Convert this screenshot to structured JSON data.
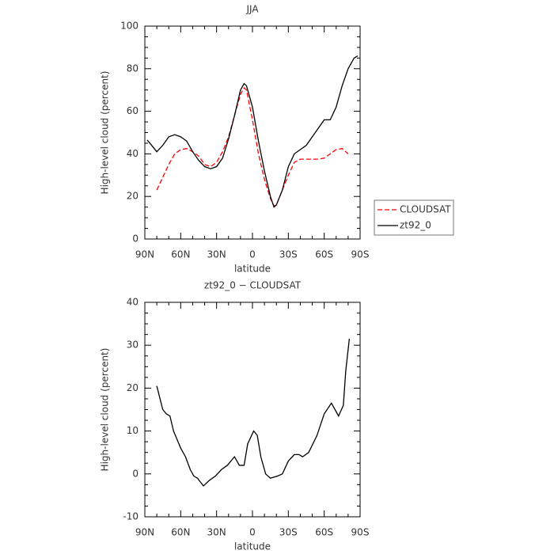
{
  "chart_data": [
    {
      "type": "line",
      "title": "JJA",
      "x_label": "latitude",
      "y_label": "High-level cloud (percent)",
      "x": [
        88,
        85,
        80,
        75,
        70,
        65,
        60,
        55,
        50,
        45,
        40,
        35,
        30,
        25,
        20,
        15,
        10,
        7,
        5,
        0,
        -5,
        -10,
        -15,
        -18,
        -20,
        -25,
        -30,
        -35,
        -40,
        -45,
        -50,
        -55,
        -60,
        -65,
        -70,
        -75,
        -80,
        -85,
        -88
      ],
      "series": [
        {
          "name": "CLOUDSAT",
          "color": "#ff0000",
          "dash": true,
          "values": [
            null,
            null,
            23,
            29,
            35,
            40,
            42,
            42.5,
            41,
            39,
            35,
            34,
            36,
            41,
            48,
            58,
            68,
            71,
            70,
            56,
            40,
            28,
            19,
            15.5,
            16,
            23,
            30,
            36,
            37.5,
            37.5,
            37.5,
            37.5,
            38,
            40,
            42,
            42.5,
            40,
            null,
            null
          ]
        },
        {
          "name": "zt92_0",
          "color": "#000000",
          "dash": false,
          "values": [
            46.5,
            44.5,
            41,
            44,
            48,
            49,
            48,
            46,
            41,
            37,
            34,
            33,
            34,
            38,
            47,
            58,
            70,
            73,
            72,
            62,
            46,
            32,
            20,
            15,
            16,
            23,
            34,
            40,
            42,
            44,
            48,
            52,
            56,
            56,
            62,
            72,
            80,
            85,
            86
          ]
        }
      ],
      "xlim": [
        90,
        -90
      ],
      "xticks": [
        {
          "value": 90,
          "label": "90N"
        },
        {
          "value": 60,
          "label": "60N"
        },
        {
          "value": 30,
          "label": "30N"
        },
        0,
        {
          "value": -30,
          "label": "30S"
        },
        {
          "value": -60,
          "label": "60S"
        },
        {
          "value": -90,
          "label": "90S"
        }
      ],
      "ylim": [
        0,
        100
      ],
      "yticks": [
        0,
        20,
        40,
        60,
        80,
        100
      ],
      "legend": "outside right"
    },
    {
      "type": "line",
      "title": "zt92_0  −  CLOUDSAT",
      "x_label": "latitude",
      "y_label": "High-level cloud (percent)",
      "x": [
        80,
        75,
        72,
        69,
        66,
        60,
        56,
        52,
        49,
        46,
        41,
        36,
        31,
        26,
        21,
        15,
        11,
        7,
        4,
        -1,
        -4,
        -7,
        -11,
        -15,
        -21,
        -25,
        -30,
        -35,
        -39,
        -42,
        -47,
        -54,
        -60,
        -66,
        -69,
        -72,
        -76,
        -78,
        -81
      ],
      "series": [
        {
          "name": "zt92_0",
          "color": "#000000",
          "dash": false,
          "values": [
            20.5,
            15,
            14,
            13.5,
            10,
            6,
            4,
            1,
            -0.5,
            -1,
            -2.8,
            -1.5,
            -0.5,
            1,
            2,
            4,
            2,
            2,
            7,
            10,
            9,
            4,
            0,
            -1,
            -0.5,
            0,
            3,
            4.5,
            4.5,
            4,
            5,
            9,
            14,
            16.5,
            15,
            13.5,
            16,
            24,
            31.5
          ]
        }
      ],
      "xlim": [
        90,
        -90
      ],
      "xticks": [
        {
          "value": 90,
          "label": "90N"
        },
        {
          "value": 60,
          "label": "60N"
        },
        {
          "value": 30,
          "label": "30N"
        },
        0,
        {
          "value": -30,
          "label": "30S"
        },
        {
          "value": -60,
          "label": "60S"
        },
        {
          "value": -90,
          "label": "90S"
        }
      ],
      "ylim": [
        -10,
        40
      ],
      "yticks": [
        -10,
        0,
        10,
        20,
        30,
        40
      ]
    }
  ]
}
